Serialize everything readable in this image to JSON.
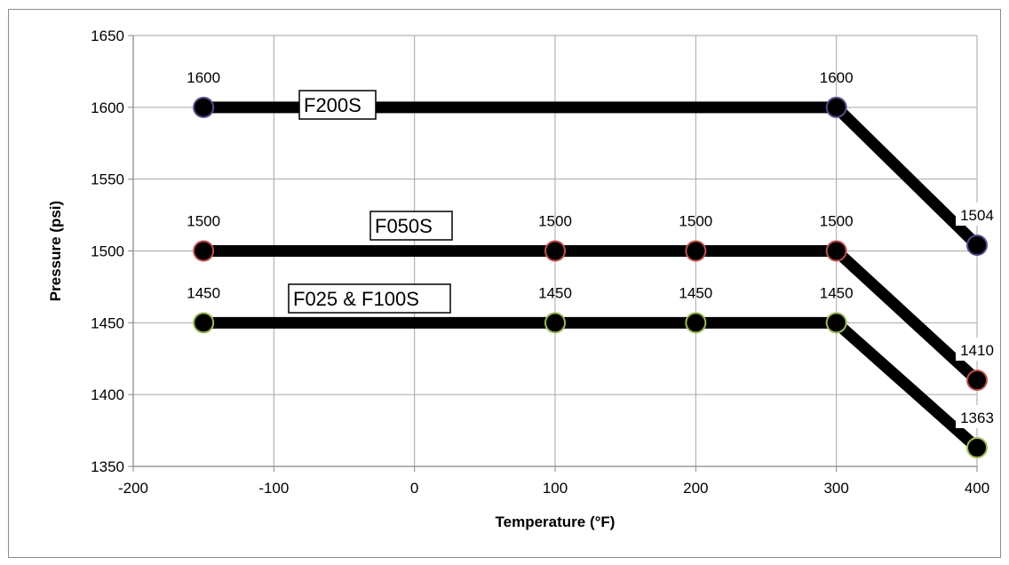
{
  "chart_data": {
    "type": "line",
    "title": "",
    "xlabel": "Temperature (°F)",
    "ylabel": "Pressure (psi)",
    "xlim": [
      -200,
      400
    ],
    "ylim": [
      1350,
      1650
    ],
    "x_ticks": [
      -200,
      -100,
      0,
      100,
      200,
      300,
      400
    ],
    "y_ticks": [
      1350,
      1400,
      1450,
      1500,
      1550,
      1600,
      1650
    ],
    "grid": true,
    "legend": "none",
    "series": [
      {
        "name": "F200S",
        "marker_edge_color": "#5b4a8b",
        "points": [
          {
            "x": -150,
            "y": 1600,
            "label": "1600"
          },
          {
            "x": 300,
            "y": 1600,
            "label": "1600"
          },
          {
            "x": 400,
            "y": 1504,
            "label": "1504"
          }
        ]
      },
      {
        "name": "F050S",
        "marker_edge_color": "#c0504d",
        "points": [
          {
            "x": -150,
            "y": 1500,
            "label": "1500"
          },
          {
            "x": 100,
            "y": 1500,
            "label": "1500"
          },
          {
            "x": 200,
            "y": 1500,
            "label": "1500"
          },
          {
            "x": 300,
            "y": 1500,
            "label": "1500"
          },
          {
            "x": 400,
            "y": 1410,
            "label": "1410"
          }
        ]
      },
      {
        "name": "F025 & F100S",
        "marker_edge_color": "#9bbb59",
        "points": [
          {
            "x": -150,
            "y": 1450,
            "label": "1450"
          },
          {
            "x": 100,
            "y": 1450,
            "label": "1450"
          },
          {
            "x": 200,
            "y": 1450,
            "label": "1450"
          },
          {
            "x": 300,
            "y": 1450,
            "label": "1450"
          },
          {
            "x": 400,
            "y": 1363,
            "label": "1363"
          }
        ]
      }
    ]
  }
}
